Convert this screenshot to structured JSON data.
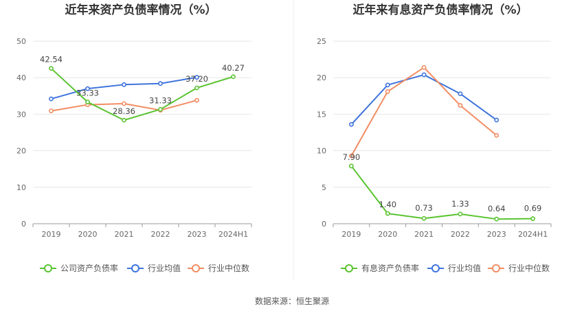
{
  "source_text": "数据来源：恒生聚源",
  "chart_data": [
    {
      "type": "line",
      "title": "近年来资产负债率情况（%）",
      "categories": [
        "2019",
        "2020",
        "2021",
        "2022",
        "2023",
        "2024H1"
      ],
      "ylim": [
        0,
        50
      ],
      "yticks": [
        0,
        10,
        20,
        30,
        40,
        50
      ],
      "grid": true,
      "legend_position": "bottom",
      "series": [
        {
          "name": "公司资产负债率",
          "color": "#5ac431",
          "values": [
            42.54,
            33.33,
            28.36,
            31.33,
            37.2,
            40.27
          ],
          "labels": [
            "42.54",
            "33.33",
            "28.36",
            "31.33",
            "37.20",
            "40.27"
          ]
        },
        {
          "name": "行业均值",
          "color": "#3d73dc",
          "values": [
            34.2,
            37.0,
            38.1,
            38.4,
            40.1,
            null
          ]
        },
        {
          "name": "行业中位数",
          "color": "#f28c62",
          "values": [
            30.9,
            32.6,
            32.9,
            31.1,
            33.8,
            null
          ]
        }
      ]
    },
    {
      "type": "line",
      "title": "近年来有息资产负债率情况（%）",
      "categories": [
        "2019",
        "2020",
        "2021",
        "2022",
        "2023",
        "2024H1"
      ],
      "ylim": [
        0,
        25
      ],
      "yticks": [
        0,
        5,
        10,
        15,
        20,
        25
      ],
      "grid": true,
      "legend_position": "bottom",
      "series": [
        {
          "name": "有息资产负债率",
          "color": "#5ac431",
          "values": [
            7.9,
            1.4,
            0.73,
            1.33,
            0.64,
            0.69
          ],
          "labels": [
            "7.90",
            "1.40",
            "0.73",
            "1.33",
            "0.64",
            "0.69"
          ]
        },
        {
          "name": "行业均值",
          "color": "#3d73dc",
          "values": [
            13.6,
            19.0,
            20.4,
            17.8,
            14.2,
            null
          ]
        },
        {
          "name": "行业中位数",
          "color": "#f28c62",
          "values": [
            9.3,
            18.1,
            21.4,
            16.2,
            12.1,
            null
          ]
        }
      ]
    }
  ]
}
